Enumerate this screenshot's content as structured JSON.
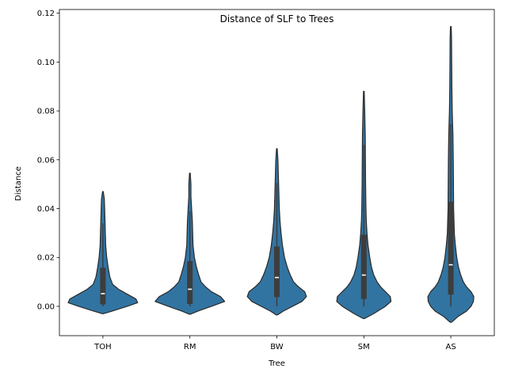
{
  "chart_data": {
    "type": "violin",
    "title": "Distance of SLF to Trees",
    "xlabel": "Tree",
    "ylabel": "Distance",
    "ylim": [
      -0.012,
      0.1215
    ],
    "yticks": [
      0.0,
      0.02,
      0.04,
      0.06,
      0.08,
      0.1,
      0.12
    ],
    "ytick_labels": [
      "0.00",
      "0.02",
      "0.04",
      "0.06",
      "0.08",
      "0.10",
      "0.12"
    ],
    "categories": [
      "TOH",
      "RM",
      "BW",
      "SM",
      "AS"
    ],
    "grid": false,
    "colors": {
      "violin_fill": "#3274a1",
      "violin_edge": "#2a2a2a",
      "box": "#3d3d3d",
      "median": "#ffffff"
    },
    "summary": [
      {
        "tree": "TOH",
        "min": 0.0,
        "q1": 0.0008,
        "median": 0.0052,
        "q3": 0.0158,
        "whisker_high": 0.034,
        "kde_low": -0.003,
        "kde_high": 0.0472
      },
      {
        "tree": "RM",
        "min": 0.0,
        "q1": 0.001,
        "median": 0.007,
        "q3": 0.0185,
        "whisker_high": 0.039,
        "kde_low": -0.0032,
        "kde_high": 0.0545
      },
      {
        "tree": "BW",
        "min": 0.0,
        "q1": 0.0038,
        "median": 0.0118,
        "q3": 0.0245,
        "whisker_high": 0.0505,
        "kde_low": -0.0035,
        "kde_high": 0.0645
      },
      {
        "tree": "SM",
        "min": 0.0,
        "q1": 0.003,
        "median": 0.0128,
        "q3": 0.0293,
        "whisker_high": 0.066,
        "kde_low": -0.005,
        "kde_high": 0.088
      },
      {
        "tree": "AS",
        "min": 0.0,
        "q1": 0.0048,
        "median": 0.017,
        "q3": 0.0428,
        "whisker_high": 0.0745,
        "kde_low": -0.0065,
        "kde_high": 0.1145
      }
    ],
    "density_profiles": [
      {
        "tree": "TOH",
        "points": [
          [
            -0.003,
            0.02
          ],
          [
            -0.002,
            0.25
          ],
          [
            0.0,
            0.7
          ],
          [
            0.0015,
            1.0
          ],
          [
            0.003,
            0.95
          ],
          [
            0.005,
            0.7
          ],
          [
            0.007,
            0.45
          ],
          [
            0.009,
            0.28
          ],
          [
            0.012,
            0.2
          ],
          [
            0.016,
            0.15
          ],
          [
            0.02,
            0.11
          ],
          [
            0.025,
            0.08
          ],
          [
            0.03,
            0.07
          ],
          [
            0.035,
            0.06
          ],
          [
            0.04,
            0.05
          ],
          [
            0.044,
            0.04
          ],
          [
            0.047,
            0.01
          ]
        ]
      },
      {
        "tree": "RM",
        "points": [
          [
            -0.0032,
            0.02
          ],
          [
            -0.002,
            0.22
          ],
          [
            0.0,
            0.62
          ],
          [
            0.002,
            1.0
          ],
          [
            0.004,
            0.88
          ],
          [
            0.006,
            0.62
          ],
          [
            0.008,
            0.45
          ],
          [
            0.01,
            0.32
          ],
          [
            0.013,
            0.25
          ],
          [
            0.016,
            0.19
          ],
          [
            0.02,
            0.13
          ],
          [
            0.025,
            0.09
          ],
          [
            0.03,
            0.08
          ],
          [
            0.035,
            0.07
          ],
          [
            0.04,
            0.05
          ],
          [
            0.045,
            0.03
          ],
          [
            0.05,
            0.03
          ],
          [
            0.0545,
            0.01
          ]
        ]
      },
      {
        "tree": "BW",
        "points": [
          [
            -0.0035,
            0.02
          ],
          [
            -0.002,
            0.18
          ],
          [
            0.0,
            0.45
          ],
          [
            0.002,
            0.72
          ],
          [
            0.004,
            0.85
          ],
          [
            0.006,
            0.8
          ],
          [
            0.008,
            0.62
          ],
          [
            0.01,
            0.48
          ],
          [
            0.013,
            0.38
          ],
          [
            0.016,
            0.3
          ],
          [
            0.02,
            0.22
          ],
          [
            0.025,
            0.16
          ],
          [
            0.03,
            0.12
          ],
          [
            0.035,
            0.09
          ],
          [
            0.04,
            0.07
          ],
          [
            0.045,
            0.06
          ],
          [
            0.05,
            0.05
          ],
          [
            0.055,
            0.04
          ],
          [
            0.06,
            0.03
          ],
          [
            0.0645,
            0.01
          ]
        ]
      },
      {
        "tree": "SM",
        "points": [
          [
            -0.005,
            0.02
          ],
          [
            -0.003,
            0.28
          ],
          [
            0.0,
            0.62
          ],
          [
            0.002,
            0.78
          ],
          [
            0.004,
            0.76
          ],
          [
            0.006,
            0.62
          ],
          [
            0.008,
            0.48
          ],
          [
            0.01,
            0.38
          ],
          [
            0.013,
            0.28
          ],
          [
            0.016,
            0.22
          ],
          [
            0.02,
            0.17
          ],
          [
            0.025,
            0.12
          ],
          [
            0.03,
            0.09
          ],
          [
            0.035,
            0.07
          ],
          [
            0.04,
            0.06
          ],
          [
            0.05,
            0.05
          ],
          [
            0.06,
            0.045
          ],
          [
            0.07,
            0.04
          ],
          [
            0.08,
            0.025
          ],
          [
            0.088,
            0.01
          ]
        ]
      },
      {
        "tree": "AS",
        "points": [
          [
            -0.0065,
            0.02
          ],
          [
            -0.004,
            0.22
          ],
          [
            -0.002,
            0.45
          ],
          [
            0.0,
            0.58
          ],
          [
            0.002,
            0.65
          ],
          [
            0.004,
            0.66
          ],
          [
            0.006,
            0.58
          ],
          [
            0.008,
            0.45
          ],
          [
            0.01,
            0.36
          ],
          [
            0.013,
            0.28
          ],
          [
            0.016,
            0.22
          ],
          [
            0.02,
            0.17
          ],
          [
            0.025,
            0.13
          ],
          [
            0.03,
            0.1
          ],
          [
            0.035,
            0.09
          ],
          [
            0.04,
            0.08
          ],
          [
            0.05,
            0.075
          ],
          [
            0.06,
            0.07
          ],
          [
            0.07,
            0.06
          ],
          [
            0.08,
            0.04
          ],
          [
            0.09,
            0.03
          ],
          [
            0.1,
            0.025
          ],
          [
            0.11,
            0.02
          ],
          [
            0.1145,
            0.01
          ]
        ]
      }
    ]
  }
}
